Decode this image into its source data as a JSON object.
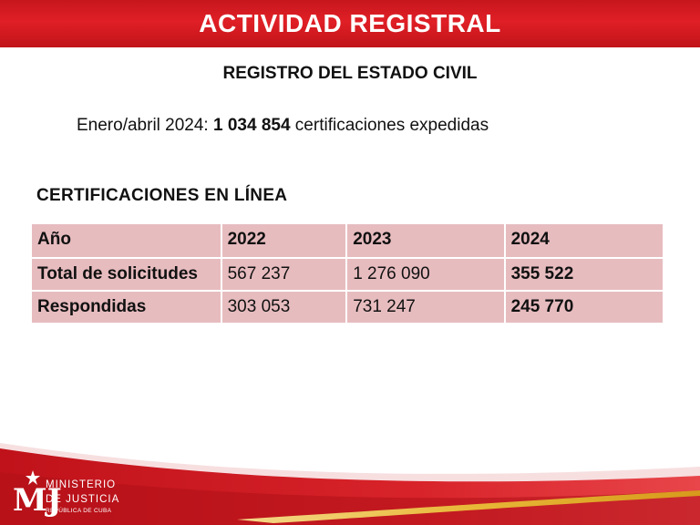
{
  "header": {
    "title": "ACTIVIDAD REGISTRAL"
  },
  "subtitle": "REGISTRO DEL ESTADO CIVIL",
  "summary": {
    "prefix": "Enero/abril 2024: ",
    "value": "1 034 854",
    "suffix": " certificaciones expedidas"
  },
  "section_heading": "CERTIFICACIONES  EN LÍNEA",
  "table": {
    "header": [
      "Año",
      "2022",
      "2023",
      "2024"
    ],
    "rows": [
      {
        "label": "Total de solicitudes",
        "values": [
          "567 237",
          "1 276 090",
          "355 522"
        ]
      },
      {
        "label": "Respondidas",
        "values": [
          "303 053",
          "731 247",
          "245 770"
        ]
      }
    ]
  },
  "logo": {
    "initials": "MJ",
    "line1": "MINISTERIO",
    "line2": "DE JUSTICIA",
    "line3": "REPÚBLICA DE CUBA"
  },
  "colors": {
    "accent_red": "#d61b22",
    "table_fill": "#e7bcbf",
    "gold": "#e8b838"
  }
}
